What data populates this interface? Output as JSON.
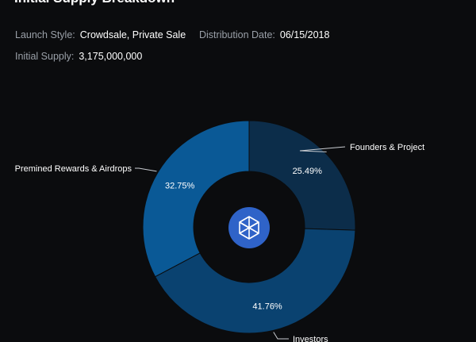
{
  "header": {
    "title": "Initial Supply Breakdown"
  },
  "info": {
    "launch_style_label": "Launch Style:",
    "launch_style_value": "Crowdsale, Private Sale",
    "distribution_date_label": "Distribution Date:",
    "distribution_date_value": "06/15/2018",
    "initial_supply_label": "Initial Supply:",
    "initial_supply_value": "3,175,000,000"
  },
  "center_logo": {
    "icon": "fantom-cube-logo",
    "color": "#2f63c8"
  },
  "chart_data": {
    "type": "pie",
    "variant": "donut",
    "title": "",
    "legend": "none",
    "slices": [
      {
        "name": "Founders & Project",
        "value": 25.49,
        "label": "25.49%",
        "color": "#0c2d4a"
      },
      {
        "name": "Investors",
        "value": 41.76,
        "label": "41.76%",
        "color": "#0a4270"
      },
      {
        "name": "Premined Rewards & Airdrops",
        "value": 32.75,
        "label": "32.75%",
        "color": "#0a5996"
      }
    ]
  }
}
